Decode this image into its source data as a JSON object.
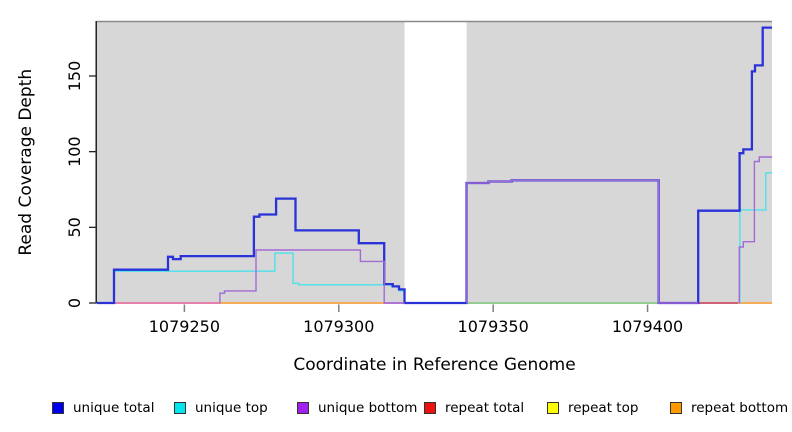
{
  "chart_data": {
    "type": "line",
    "title": "",
    "xlabel": "Coordinate in Reference Genome",
    "ylabel": "Read Coverage Depth",
    "xlim": [
      1079221.7,
      1079440.3
    ],
    "ylim": [
      0,
      186
    ],
    "x_ticks": [
      1079250,
      1079300,
      1079350,
      1079400
    ],
    "y_ticks": [
      0,
      50,
      100,
      150
    ],
    "grid": false,
    "plot_background": "#d7d7d7",
    "gap_region": {
      "x_start": 1079321.3,
      "x_end": 1079341.4
    },
    "legend_position": "bottom",
    "legend": [
      {
        "label": "unique total",
        "color": "#0000ee"
      },
      {
        "label": "unique top",
        "color": "#00e5ee"
      },
      {
        "label": "unique bottom",
        "color": "#a020f0"
      },
      {
        "label": "repeat total",
        "color": "#ee1111"
      },
      {
        "label": "repeat top",
        "color": "#ffff00"
      },
      {
        "label": "repeat bottom",
        "color": "#ff9900"
      }
    ],
    "baseline_segments": [
      {
        "name": "repeat-blend-left",
        "color": "#e8639a",
        "x_start": 1079221.7,
        "x_end": 1079261.3
      },
      {
        "name": "repeat-bottom-left",
        "color": "#ff9d2e",
        "x_start": 1079261.3,
        "x_end": 1079314.7
      },
      {
        "name": "repeat-blend-mid",
        "color": "#c75fb5",
        "x_start": 1079314.7,
        "x_end": 1079321.3
      },
      {
        "name": "top-blend-green",
        "color": "#7ec87e",
        "x_start": 1079341.4,
        "x_end": 1079403.6
      },
      {
        "name": "repeat-total-right",
        "color": "#cd3a55",
        "x_start": 1079403.6,
        "x_end": 1079429.3
      },
      {
        "name": "repeat-bottom-right",
        "color": "#ff9d2e",
        "x_start": 1079429.3,
        "x_end": 1079440.3
      }
    ],
    "series": [
      {
        "name": "unique top",
        "line_color": "#4be2ec",
        "width": 1.4,
        "polylines": [
          {
            "points": [
              [
                1079227.2,
                0
              ],
              [
                1079227.3,
                21
              ],
              [
                1079279.3,
                33
              ],
              [
                1079285.2,
                13
              ],
              [
                1079287.0,
                12
              ],
              [
                1079317.0,
                11
              ],
              [
                1079319.5,
                8
              ],
              [
                1079321.3,
                0
              ]
            ],
            "end": 1079321.5
          },
          {
            "points": [
              [
                1079429.8,
                0
              ],
              [
                1079429.9,
                61.5
              ],
              [
                1079438.3,
                86
              ]
            ],
            "end": 1079440.3
          }
        ]
      },
      {
        "name": "unique total",
        "line_color": "#2a33d8",
        "width": 2.3,
        "polylines": [
          {
            "points": [
              [
                1079221.7,
                0
              ],
              [
                1079227.2,
                22
              ],
              [
                1079244.7,
                30.5
              ],
              [
                1079246.3,
                29
              ],
              [
                1079248.8,
                31
              ],
              [
                1079272.5,
                57
              ],
              [
                1079274.3,
                58.5
              ],
              [
                1079279.7,
                69
              ],
              [
                1079286.0,
                48
              ],
              [
                1079306.5,
                39.5
              ],
              [
                1079314.7,
                12.5
              ],
              [
                1079317.5,
                11
              ],
              [
                1079319.5,
                9
              ],
              [
                1079321.3,
                0
              ],
              [
                1079341.4,
                79.3
              ],
              [
                1079348.5,
                80.3
              ],
              [
                1079356.0,
                81
              ],
              [
                1079403.6,
                0
              ],
              [
                1079416.4,
                61
              ],
              [
                1079429.8,
                99
              ],
              [
                1079431.0,
                101.5
              ],
              [
                1079433.8,
                153
              ],
              [
                1079434.8,
                157
              ],
              [
                1079437.3,
                182
              ]
            ],
            "end": 1079440.3
          }
        ]
      },
      {
        "name": "unique bottom",
        "line_color": "#a46ad4",
        "width": 1.4,
        "polylines": [
          {
            "points": [
              [
                1079261.3,
                0
              ],
              [
                1079261.5,
                6.5
              ],
              [
                1079263.0,
                8
              ],
              [
                1079273.2,
                35
              ],
              [
                1079307.0,
                27.5
              ],
              [
                1079314.7,
                0
              ]
            ],
            "end": 1079321.3
          },
          {
            "points": [
              [
                1079341.4,
                0
              ],
              [
                1079341.5,
                79.3
              ],
              [
                1079348.5,
                80.3
              ],
              [
                1079356.0,
                81
              ],
              [
                1079403.6,
                0
              ]
            ],
            "end": 1079416.4
          },
          {
            "points": [
              [
                1079429.6,
                0
              ],
              [
                1079429.7,
                37
              ],
              [
                1079431.0,
                40.5
              ],
              [
                1079434.6,
                93.5
              ],
              [
                1079436.2,
                96.5
              ]
            ],
            "end": 1079440.3
          }
        ]
      }
    ]
  }
}
